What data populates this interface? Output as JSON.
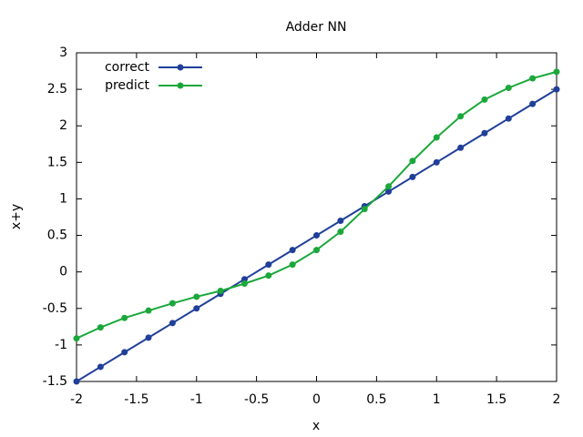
{
  "chart_data": {
    "type": "line",
    "title": "Adder NN",
    "x_label": "x",
    "y_label": "x+y",
    "x": [
      -2,
      -1.8,
      -1.6,
      -1.4,
      -1.2,
      -1,
      -0.8,
      -0.6,
      -0.4,
      -0.2,
      0,
      0.2,
      0.4,
      0.6,
      0.8,
      1,
      1.2,
      1.4,
      1.6,
      1.8,
      2
    ],
    "series": [
      {
        "name": "correct",
        "color": "#1f3f99",
        "values": [
          -1.5,
          -1.3,
          -1.1,
          -0.9,
          -0.7,
          -0.5,
          -0.3,
          -0.1,
          0.1,
          0.3,
          0.5,
          0.7,
          0.9,
          1.1,
          1.3,
          1.5,
          1.7,
          1.9,
          2.1,
          2.3,
          2.5
        ]
      },
      {
        "name": "predict",
        "color": "#1aa83a",
        "values": [
          -0.91,
          -0.76,
          -0.63,
          -0.53,
          -0.43,
          -0.34,
          -0.26,
          -0.16,
          -0.05,
          0.1,
          0.3,
          0.55,
          0.86,
          1.17,
          1.52,
          1.84,
          2.13,
          2.36,
          2.52,
          2.65,
          2.74
        ]
      }
    ],
    "xlim": [
      -2,
      2
    ],
    "xticks": [
      -2,
      -1.5,
      -1,
      -0.5,
      0,
      0.5,
      1,
      1.5,
      2
    ],
    "ylim": [
      -1.5,
      3
    ],
    "yticks": [
      -1.5,
      -1,
      -0.5,
      0,
      0.5,
      1,
      1.5,
      2,
      2.5,
      3
    ],
    "grid": false,
    "legend": "top-left"
  }
}
